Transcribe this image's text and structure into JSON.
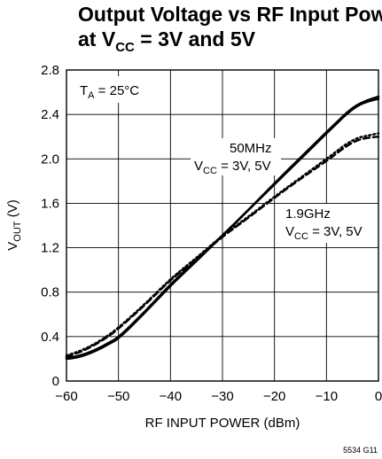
{
  "chart_data": {
    "type": "line",
    "title": {
      "line1": "Output Voltage vs RF Input Power",
      "line2_prefix": "at V",
      "line2_sub": "CC",
      "line2_suffix": " = 3V and 5V"
    },
    "xlabel": "RF INPUT POWER (dBm)",
    "ylabel": {
      "main": "V",
      "sub": "OUT",
      "unit": " (V)"
    },
    "xlim": [
      -60,
      0
    ],
    "ylim": [
      0,
      2.8
    ],
    "xticks": [
      -60,
      -50,
      -40,
      -30,
      -20,
      -10,
      0
    ],
    "xtick_labels": [
      "−60",
      "−50",
      "−40",
      "−30",
      "−20",
      "−10",
      "0"
    ],
    "yticks": [
      0,
      0.4,
      0.8,
      1.2,
      1.6,
      2.0,
      2.4,
      2.8
    ],
    "ytick_labels": [
      "0",
      "0.4",
      "0.8",
      "1.2",
      "1.6",
      "2.0",
      "2.4",
      "2.8"
    ],
    "grid": true,
    "series": [
      {
        "name": "50MHz",
        "style": "solid",
        "x": [
          -60,
          -58,
          -56,
          -54,
          -52,
          -50,
          -45,
          -40,
          -35,
          -30,
          -25,
          -20,
          -15,
          -10,
          -8,
          -6,
          -4,
          -2,
          0
        ],
        "y": [
          0.2,
          0.21,
          0.24,
          0.28,
          0.33,
          0.38,
          0.61,
          0.86,
          1.08,
          1.31,
          1.54,
          1.77,
          2.0,
          2.23,
          2.32,
          2.41,
          2.48,
          2.52,
          2.54
        ]
      },
      {
        "name": "50MHz",
        "style": "solid",
        "x": [
          -60,
          -58,
          -56,
          -54,
          -52,
          -50,
          -45,
          -40,
          -35,
          -30,
          -25,
          -20,
          -15,
          -10,
          -8,
          -6,
          -4,
          -2,
          0
        ],
        "y": [
          0.21,
          0.22,
          0.25,
          0.29,
          0.34,
          0.39,
          0.62,
          0.87,
          1.09,
          1.31,
          1.54,
          1.78,
          2.01,
          2.24,
          2.33,
          2.42,
          2.49,
          2.53,
          2.56
        ]
      },
      {
        "name": "1.9GHz",
        "style": "dashed",
        "x": [
          -60,
          -58,
          -56,
          -54,
          -52,
          -50,
          -45,
          -40,
          -35,
          -30,
          -25,
          -20,
          -15,
          -10,
          -8,
          -6,
          -4,
          -2,
          0
        ],
        "y": [
          0.22,
          0.25,
          0.29,
          0.34,
          0.4,
          0.47,
          0.68,
          0.91,
          1.1,
          1.3,
          1.47,
          1.65,
          1.82,
          1.98,
          2.05,
          2.12,
          2.17,
          2.19,
          2.2
        ]
      },
      {
        "name": "1.9GHz",
        "style": "dotted",
        "x": [
          -60,
          -58,
          -56,
          -54,
          -52,
          -50,
          -45,
          -40,
          -35,
          -30,
          -25,
          -20,
          -15,
          -10,
          -8,
          -6,
          -4,
          -2,
          0
        ],
        "y": [
          0.23,
          0.26,
          0.3,
          0.35,
          0.41,
          0.48,
          0.69,
          0.92,
          1.11,
          1.31,
          1.48,
          1.66,
          1.83,
          2.0,
          2.07,
          2.14,
          2.19,
          2.21,
          2.23
        ]
      }
    ],
    "annotations": {
      "ta": {
        "main": "T",
        "sub": "A",
        "rest": " = 25°C"
      },
      "label_50mhz": {
        "line1": "50MHz",
        "line2_prefix": "V",
        "line2_sub": "CC",
        "line2_suffix": " = 3V, 5V"
      },
      "label_19ghz": {
        "line1": "1.9GHz",
        "line2_prefix": "V",
        "line2_sub": "CC",
        "line2_suffix": " = 3V, 5V"
      }
    },
    "figure_id": "5534 G11"
  }
}
